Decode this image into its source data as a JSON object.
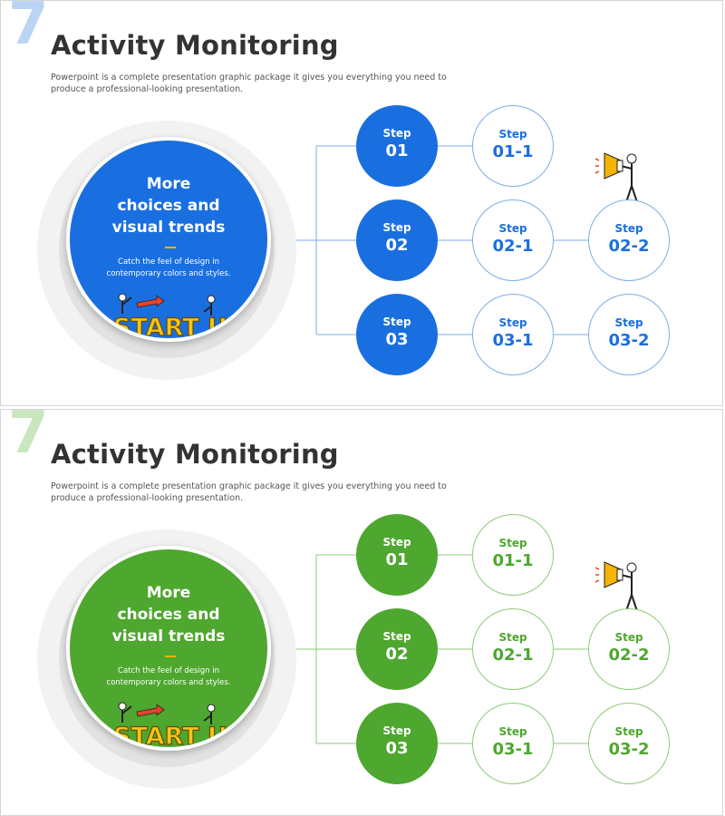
{
  "slides": [
    {
      "number": "7",
      "title": "Activity Monitoring",
      "description": "Powerpoint is a complete presentation graphic package it gives you everything you need to produce a professional-looking  presentation.",
      "colors": {
        "accent": "#1a6fe0",
        "number": "#b9d4f5",
        "line": "#7eaee8",
        "outline_border": "#7eaee8"
      },
      "circle": {
        "title_lines": [
          "More",
          "choices and",
          "visual trends"
        ],
        "sub_lines": [
          "Catch the feel of design in",
          "contemporary colors and styles."
        ]
      },
      "illustration_text": "START UP",
      "steps": [
        {
          "label": "Step",
          "num": "01"
        },
        {
          "label": "Step",
          "num": "01-1"
        },
        {
          "label": "Step",
          "num": "02"
        },
        {
          "label": "Step",
          "num": "02-1"
        },
        {
          "label": "Step",
          "num": "02-2"
        },
        {
          "label": "Step",
          "num": "03"
        },
        {
          "label": "Step",
          "num": "03-1"
        },
        {
          "label": "Step",
          "num": "03-2"
        }
      ]
    },
    {
      "number": "7",
      "title": "Activity Monitoring",
      "description": "Powerpoint is a complete presentation graphic package it gives you everything you need to produce a professional-looking  presentation.",
      "colors": {
        "accent": "#4ea72e",
        "number": "#c9e6bf",
        "line": "#8fca7a",
        "outline_border": "#8fca7a"
      },
      "circle": {
        "title_lines": [
          "More",
          "choices and",
          "visual trends"
        ],
        "sub_lines": [
          "Catch the feel of design in",
          "contemporary colors and styles."
        ]
      },
      "illustration_text": "START UP",
      "steps": [
        {
          "label": "Step",
          "num": "01"
        },
        {
          "label": "Step",
          "num": "01-1"
        },
        {
          "label": "Step",
          "num": "02"
        },
        {
          "label": "Step",
          "num": "02-1"
        },
        {
          "label": "Step",
          "num": "02-2"
        },
        {
          "label": "Step",
          "num": "03"
        },
        {
          "label": "Step",
          "num": "03-1"
        },
        {
          "label": "Step",
          "num": "03-2"
        }
      ]
    }
  ]
}
